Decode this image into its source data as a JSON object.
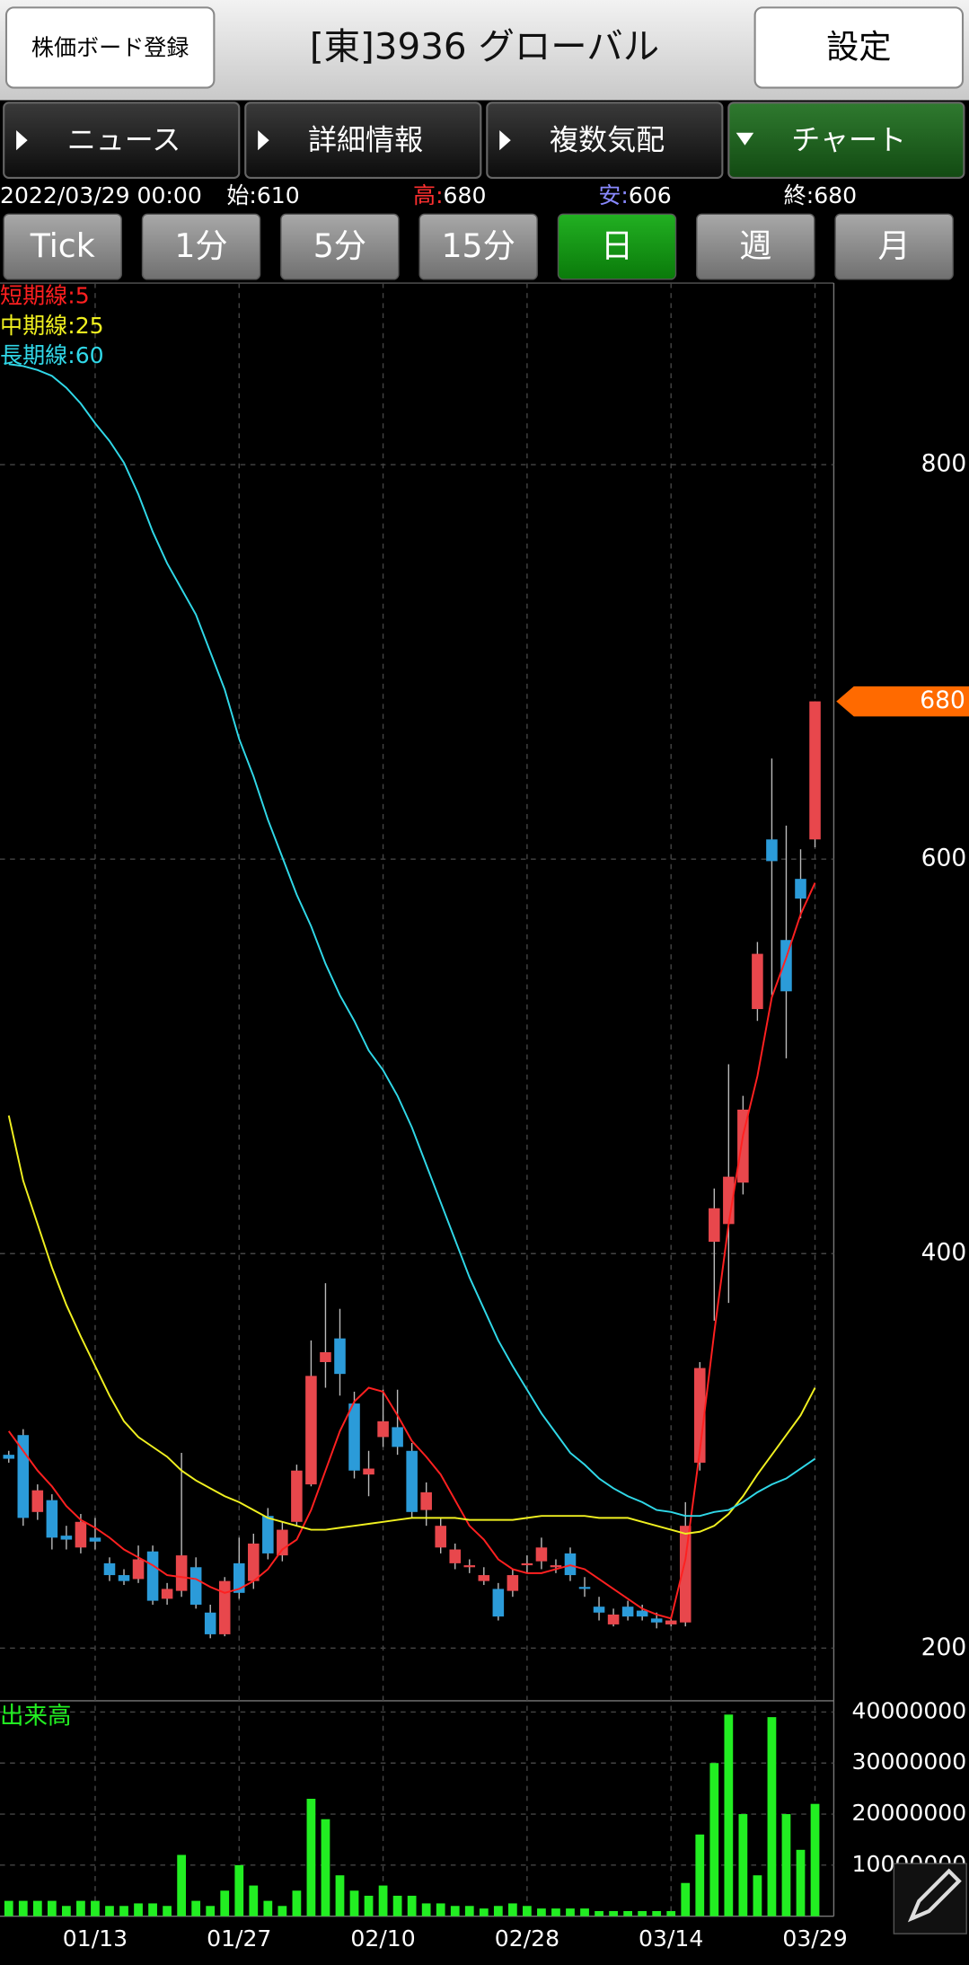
{
  "header": {
    "left_button": "株価ボード登録",
    "title": "[東]3936 グローバル",
    "right_button": "設定"
  },
  "tabs": [
    "ニュース",
    "詳細情報",
    "複数気配",
    "チャート"
  ],
  "summary": {
    "datetime": "2022/03/29 00:00",
    "items": [
      {
        "label": "始:",
        "value": 610,
        "color": "#ffffff"
      },
      {
        "label": "高:",
        "value": 680,
        "color": "#ff3030"
      },
      {
        "label": "安:",
        "value": 606,
        "color": "#8888ff"
      },
      {
        "label": "終:",
        "value": 680,
        "color": "#ffffff"
      }
    ]
  },
  "periods": [
    "Tick",
    "1分",
    "5分",
    "15分",
    "日",
    "週",
    "月"
  ],
  "selected_period": 4,
  "chart_data": [
    {
      "type": "candlestick",
      "up_color": "#e8474c",
      "down_color": "#2b9bd9",
      "grid": true,
      "open": [
        298,
        308,
        269,
        275,
        257,
        251,
        256,
        243,
        237,
        235,
        249,
        225,
        229,
        241,
        218,
        207,
        243,
        234,
        267,
        247,
        264,
        283,
        345,
        357,
        324,
        288,
        307,
        312,
        300,
        270,
        251,
        243,
        241,
        234,
        230,
        229,
        242,
        244,
        241,
        248,
        231,
        221,
        212,
        221,
        219,
        215,
        212,
        213,
        294,
        406,
        415,
        436,
        524,
        610,
        559,
        590,
        610
      ],
      "high": [
        300,
        311,
        283,
        278,
        262,
        268,
        266,
        246,
        240,
        252,
        252,
        233,
        299,
        246,
        222,
        236,
        256,
        258,
        271,
        264,
        293,
        356,
        385,
        372,
        330,
        300,
        331,
        331,
        304,
        284,
        266,
        253,
        245,
        241,
        233,
        240,
        247,
        256,
        245,
        251,
        236,
        226,
        220,
        224,
        222,
        218,
        216,
        274,
        345,
        433,
        496,
        480,
        558,
        651,
        617,
        605,
        680
      ],
      "low": [
        294,
        262,
        265,
        250,
        250,
        248,
        250,
        234,
        232,
        233,
        222,
        222,
        226,
        220,
        205,
        206,
        225,
        230,
        245,
        244,
        262,
        282,
        332,
        328,
        286,
        277,
        302,
        298,
        266,
        262,
        248,
        240,
        238,
        232,
        214,
        226,
        238,
        240,
        238,
        234,
        226,
        214,
        211,
        214,
        214,
        210,
        211,
        211,
        290,
        366,
        375,
        430,
        518,
        531,
        499,
        570,
        606
      ],
      "close": [
        296,
        266,
        280,
        256,
        255,
        264,
        254,
        237,
        234,
        245,
        224,
        230,
        247,
        222,
        207,
        234,
        228,
        253,
        248,
        260,
        290,
        338,
        350,
        339,
        290,
        291,
        315,
        302,
        269,
        279,
        262,
        250,
        242,
        237,
        216,
        237,
        243,
        251,
        242,
        237,
        230,
        218,
        217,
        216,
        216,
        213,
        214,
        262,
        342,
        423,
        439,
        473,
        552,
        599,
        533,
        580,
        680
      ],
      "series": [
        {
          "name": "短期線:5",
          "color": "#ff2020",
          "values": [
            310,
            300,
            290,
            282,
            272,
            265,
            261,
            256,
            250,
            246,
            242,
            237,
            236,
            235,
            231,
            228,
            230,
            234,
            240,
            250,
            255,
            270,
            290,
            310,
            325,
            332,
            330,
            318,
            305,
            297,
            288,
            275,
            262,
            255,
            245,
            240,
            238,
            238,
            240,
            242,
            240,
            235,
            230,
            225,
            220,
            217,
            215,
            245,
            300,
            360,
            415,
            460,
            490,
            530,
            550,
            572,
            588
          ]
        },
        {
          "name": "中期線:25",
          "color": "#f0f020",
          "values": [
            470,
            437,
            415,
            393,
            374,
            358,
            343,
            328,
            315,
            307,
            302,
            297,
            290,
            285,
            281,
            277,
            274,
            270,
            266,
            264,
            262,
            260,
            260,
            261,
            262,
            263,
            264,
            265,
            266,
            266,
            266,
            266,
            265,
            265,
            265,
            265,
            266,
            267,
            267,
            267,
            267,
            266,
            266,
            266,
            264,
            262,
            260,
            258,
            259,
            262,
            268,
            277,
            288,
            298,
            308,
            318,
            332
          ]
        },
        {
          "name": "長期線:60",
          "color": "#30d8e8",
          "values": [
            851,
            850,
            848,
            845,
            839,
            831,
            821,
            812,
            801,
            785,
            766,
            750,
            737,
            724,
            705,
            686,
            661,
            642,
            620,
            601,
            582,
            566,
            547,
            531,
            518,
            503,
            493,
            480,
            464,
            445,
            426,
            407,
            388,
            372,
            356,
            343,
            331,
            319,
            309,
            299,
            293,
            286,
            281,
            277,
            274,
            270,
            269,
            267,
            267,
            269,
            270,
            274,
            279,
            283,
            286,
            291,
            296
          ]
        }
      ],
      "ylim": [
        173.3,
        892.1
      ],
      "yticks": [
        200,
        400,
        600,
        800
      ],
      "marker_color": "#ff6a00"
    },
    {
      "type": "bar",
      "title": "出来高",
      "color": "#22ee22",
      "grid": true,
      "categories": [
        null,
        null,
        null,
        null,
        null,
        null,
        "01/13",
        null,
        null,
        null,
        null,
        null,
        null,
        null,
        null,
        null,
        "01/27",
        null,
        null,
        null,
        null,
        null,
        null,
        null,
        null,
        null,
        "02/10",
        null,
        null,
        null,
        null,
        null,
        null,
        null,
        null,
        null,
        "02/28",
        null,
        null,
        null,
        null,
        null,
        null,
        null,
        null,
        null,
        "03/14",
        null,
        null,
        null,
        null,
        null,
        null,
        null,
        null,
        null,
        "03/29"
      ],
      "values": [
        3000000,
        3000000,
        3000000,
        3000000,
        2000000,
        3000000,
        3000000,
        2000000,
        2000000,
        2500000,
        2500000,
        2000000,
        12000000,
        3000000,
        2000000,
        5000000,
        10000000,
        6000000,
        3000000,
        2000000,
        5000000,
        23000000,
        19000000,
        8000000,
        5000000,
        4000000,
        6000000,
        4000000,
        4000000,
        2500000,
        2500000,
        2000000,
        2000000,
        1500000,
        2000000,
        2500000,
        2000000,
        1500000,
        1500000,
        1500000,
        1500000,
        1000000,
        1000000,
        1000000,
        1000000,
        1000000,
        1000000,
        6500000,
        16000000,
        30000000,
        39500000,
        20000000,
        8000000,
        39000000,
        20000000,
        13000000,
        22000000
      ],
      "ylim": [
        0,
        41720000
      ],
      "yticks": [
        10000000,
        20000000,
        30000000,
        40000000
      ]
    }
  ]
}
